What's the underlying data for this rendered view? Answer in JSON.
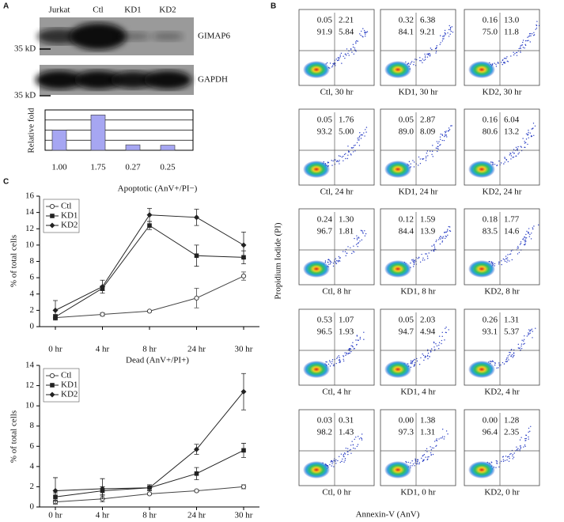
{
  "panel_labels": [
    "A",
    "B",
    "C"
  ],
  "blot": {
    "rows": [
      {
        "label": "GIMAP6",
        "marker": "35 kD"
      },
      {
        "label": "GAPDH",
        "marker": "35 kD"
      }
    ]
  },
  "flow": {
    "y_label": "Propidium Iodide (PI)",
    "x_label": "Annexin-V (AnV)",
    "plots": [
      {
        "label": "Ctl, 30 hr",
        "ul": "0.05",
        "ur": "2.21",
        "ll": "91.9",
        "lr": "5.84"
      },
      {
        "label": "KD1, 30 hr",
        "ul": "0.32",
        "ur": "6.38",
        "ll": "84.1",
        "lr": "9.21"
      },
      {
        "label": "KD2, 30 hr",
        "ul": "0.16",
        "ur": "13.0",
        "ll": "75.0",
        "lr": "11.8"
      },
      {
        "label": "Ctl, 24 hr",
        "ul": "0.05",
        "ur": "1.76",
        "ll": "93.2",
        "lr": "5.00"
      },
      {
        "label": "KD1, 24 hr",
        "ul": "0.05",
        "ur": "2.87",
        "ll": "89.0",
        "lr": "8.09"
      },
      {
        "label": "KD2, 24 hr",
        "ul": "0.16",
        "ur": "6.04",
        "ll": "80.6",
        "lr": "13.2"
      },
      {
        "label": "Ctl, 8 hr",
        "ul": "0.24",
        "ur": "1.30",
        "ll": "96.7",
        "lr": "1.81"
      },
      {
        "label": "KD1, 8 hr",
        "ul": "0.12",
        "ur": "1.59",
        "ll": "84.4",
        "lr": "13.9"
      },
      {
        "label": "KD2, 8 hr",
        "ul": "0.18",
        "ur": "1.77",
        "ll": "83.5",
        "lr": "14.6"
      },
      {
        "label": "Ctl, 4 hr",
        "ul": "0.53",
        "ur": "1.07",
        "ll": "96.5",
        "lr": "1.93"
      },
      {
        "label": "KD1, 4 hr",
        "ul": "0.05",
        "ur": "2.03",
        "ll": "94.7",
        "lr": "4.94"
      },
      {
        "label": "KD2, 4 hr",
        "ul": "0.26",
        "ur": "1.31",
        "ll": "93.1",
        "lr": "5.37"
      },
      {
        "label": "Ctl, 0 hr",
        "ul": "0.03",
        "ur": "0.31",
        "ll": "98.2",
        "lr": "1.43"
      },
      {
        "label": "KD1, 0 hr",
        "ul": "0.00",
        "ur": "1.38",
        "ll": "97.3",
        "lr": "1.31"
      },
      {
        "label": "KD2, 0 hr",
        "ul": "0.00",
        "ur": "1.28",
        "ll": "96.4",
        "lr": "2.35"
      }
    ]
  },
  "chart_data": [
    {
      "type": "bar",
      "ylabel": "Relative fold",
      "categories": [
        "Jurkat",
        "Ctl",
        "KD1",
        "KD2"
      ],
      "values": [
        1.0,
        1.75,
        0.27,
        0.25
      ],
      "value_labels": [
        "1.00",
        "1.75",
        "0.27",
        "0.25"
      ],
      "color": "#a6a6f2",
      "ylim": [
        0,
        2
      ],
      "yticks": [
        0,
        0.5,
        1,
        1.5,
        2
      ],
      "tick_labels": false,
      "grid": true
    },
    {
      "type": "line",
      "title": "Apoptotic (AnV+/PI−)",
      "ylabel": "% of total cells",
      "categories": [
        "0 hr",
        "4 hr",
        "8 hr",
        "24 hr",
        "30 hr"
      ],
      "ylim": [
        0,
        16
      ],
      "yticks": [
        0,
        2,
        4,
        6,
        8,
        10,
        12,
        14,
        16
      ],
      "legend": "upper left",
      "series": [
        {
          "name": "Ctl",
          "color": "#444444",
          "marker": "circle-open",
          "values": [
            1.1,
            1.5,
            1.9,
            3.5,
            6.2
          ],
          "errors": [
            0.2,
            0.2,
            0.1,
            1.2,
            0.5
          ]
        },
        {
          "name": "KD1",
          "color": "#222222",
          "marker": "square",
          "values": [
            1.2,
            4.7,
            12.4,
            8.7,
            8.5
          ],
          "errors": [
            0.3,
            0.3,
            0.5,
            1.3,
            0.8
          ]
        },
        {
          "name": "KD2",
          "color": "#222222",
          "marker": "diamond",
          "values": [
            2.0,
            4.9,
            13.7,
            13.4,
            10.0
          ],
          "errors": [
            1.2,
            0.8,
            0.8,
            1.0,
            1.6
          ]
        }
      ]
    },
    {
      "type": "line",
      "title": "Dead (AnV+/PI+)",
      "ylabel": "% of total cells",
      "categories": [
        "0 hr",
        "4 hr",
        "8 hr",
        "24 hr",
        "30 hr"
      ],
      "ylim": [
        0,
        14
      ],
      "yticks": [
        0,
        2,
        4,
        6,
        8,
        10,
        12,
        14
      ],
      "legend": "upper left",
      "series": [
        {
          "name": "Ctl",
          "color": "#444444",
          "marker": "circle-open",
          "values": [
            0.5,
            0.8,
            1.3,
            1.6,
            2.0
          ],
          "errors": [
            0.2,
            0.3,
            0.1,
            0.1,
            0.2
          ]
        },
        {
          "name": "KD1",
          "color": "#222222",
          "marker": "square",
          "values": [
            1.0,
            1.6,
            1.9,
            3.3,
            5.6
          ],
          "errors": [
            0.4,
            0.4,
            0.3,
            0.6,
            0.7
          ]
        },
        {
          "name": "KD2",
          "color": "#222222",
          "marker": "diamond",
          "values": [
            1.6,
            1.8,
            1.9,
            5.7,
            11.4
          ],
          "errors": [
            1.3,
            1.0,
            0.3,
            0.5,
            1.8
          ]
        }
      ]
    }
  ]
}
